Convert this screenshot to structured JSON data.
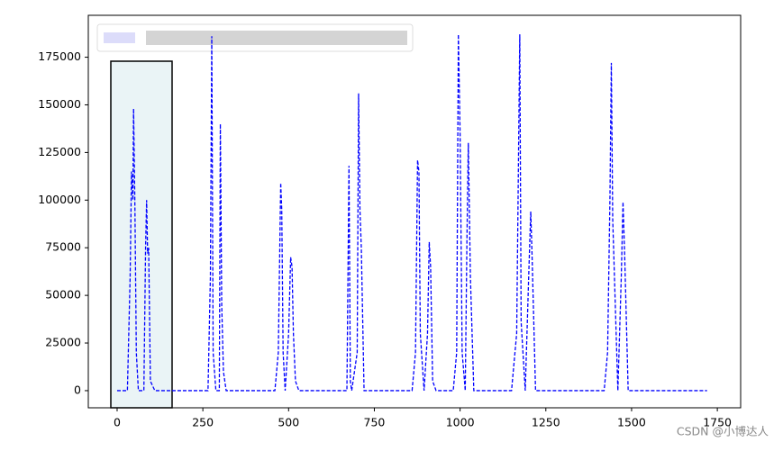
{
  "chart_data": {
    "type": "line",
    "x": [
      0,
      30,
      38,
      42,
      46,
      48,
      52,
      56,
      62,
      78,
      83,
      86,
      89,
      92,
      97,
      110,
      265,
      272,
      276,
      280,
      288,
      298,
      301,
      305,
      310,
      318,
      460,
      470,
      477,
      480,
      484,
      490,
      500,
      506,
      510,
      514,
      520,
      530,
      670,
      676,
      680,
      684,
      700,
      704,
      708,
      712,
      720,
      860,
      870,
      876,
      880,
      884,
      895,
      905,
      910,
      914,
      920,
      930,
      980,
      990,
      995,
      1000,
      1006,
      1015,
      1020,
      1024,
      1030,
      1040,
      1150,
      1165,
      1170,
      1174,
      1178,
      1190,
      1200,
      1206,
      1210,
      1220,
      1420,
      1430,
      1437,
      1441,
      1445,
      1460,
      1470,
      1475,
      1480,
      1490,
      1720
    ],
    "series": [
      {
        "color": "#0000ff",
        "linestyle": "dashed",
        "values": [
          0,
          0,
          60000,
          115000,
          100000,
          148000,
          95000,
          20000,
          0,
          0,
          75000,
          100000,
          72000,
          75000,
          5000,
          0,
          0,
          60000,
          186000,
          20000,
          0,
          0,
          140000,
          45000,
          10000,
          0,
          0,
          20000,
          109000,
          95000,
          20000,
          0,
          30000,
          70000,
          65000,
          30000,
          5000,
          0,
          0,
          118000,
          5000,
          0,
          20000,
          156000,
          95000,
          75000,
          0,
          0,
          20000,
          121000,
          115000,
          30000,
          0,
          30000,
          78000,
          65000,
          5000,
          0,
          0,
          20000,
          187000,
          135000,
          20000,
          0,
          80000,
          130000,
          60000,
          0,
          0,
          30000,
          117000,
          187000,
          36000,
          0,
          60000,
          94000,
          70000,
          0,
          0,
          20000,
          102000,
          172000,
          90000,
          0,
          60000,
          99000,
          70000,
          0,
          0
        ]
      }
    ],
    "xlim": [
      -84,
      1818
    ],
    "ylim": [
      -9000,
      197000
    ],
    "xticks": [
      0,
      250,
      500,
      750,
      1000,
      1250,
      1500,
      1750
    ],
    "yticks": [
      0,
      25000,
      50000,
      75000,
      100000,
      125000,
      150000,
      175000
    ],
    "grid": false,
    "watermark": "CSDN @小博达人"
  }
}
